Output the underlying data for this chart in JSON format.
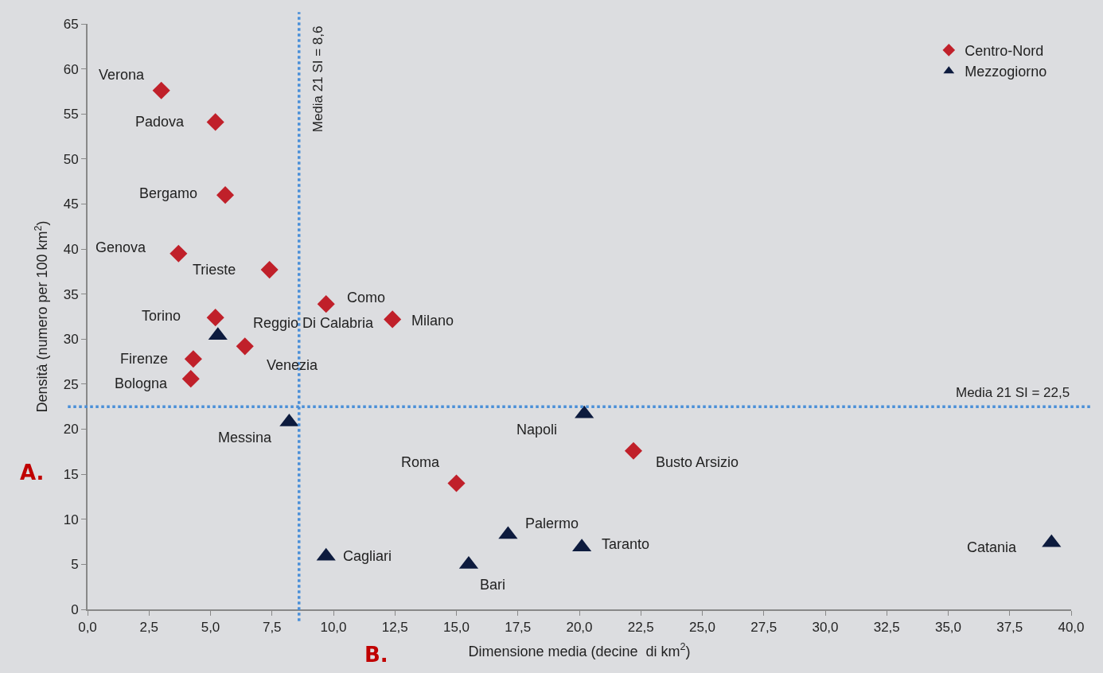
{
  "chart_data": {
    "type": "scatter",
    "xlabel": "Dimensione media (decine  di km$^{2}$)",
    "ylabel": "Densità (numero per 100 km$^{2}$)",
    "series": [
      {
        "name": "Centro-Nord",
        "color": "#c0202a",
        "marker": "diamond",
        "x": [
          3.0,
          5.2,
          5.6,
          3.7,
          7.4,
          9.7,
          12.4,
          5.2,
          6.4,
          4.3,
          4.2,
          22.2,
          15.0
        ],
        "values": [
          57.6,
          54.1,
          46.0,
          39.5,
          37.7,
          33.9,
          32.2,
          32.4,
          29.2,
          27.8,
          25.6,
          17.6,
          14.0
        ]
      },
      {
        "name": "Mezzogiorno",
        "color": "#0d1b3e",
        "marker": "triangle",
        "x": [
          5.3,
          8.2,
          20.2,
          17.1,
          20.1,
          9.7,
          15.5,
          39.2
        ],
        "values": [
          30.4,
          20.8,
          21.7,
          8.3,
          6.9,
          5.9,
          5.0,
          7.4
        ]
      }
    ],
    "xlim": [
      0,
      40
    ],
    "xticks": [
      {
        "value": 0,
        "label": "0,0"
      },
      {
        "value": 2.5,
        "label": "2,5"
      },
      {
        "value": 5,
        "label": "5,0"
      },
      {
        "value": 7.5,
        "label": "7,5"
      },
      {
        "value": 10,
        "label": "10,0"
      },
      {
        "value": 12.5,
        "label": "12,5"
      },
      {
        "value": 15,
        "label": "15,0"
      },
      {
        "value": 17.5,
        "label": "17,5"
      },
      {
        "value": 20,
        "label": "20,0"
      },
      {
        "value": 22.5,
        "label": "22,5"
      },
      {
        "value": 25,
        "label": "25,0"
      },
      {
        "value": 27.5,
        "label": "27,5"
      },
      {
        "value": 30,
        "label": "30,0"
      },
      {
        "value": 32.5,
        "label": "32,5"
      },
      {
        "value": 35,
        "label": "35,0"
      },
      {
        "value": 37.5,
        "label": "37,5"
      },
      {
        "value": 40,
        "label": "40,0"
      }
    ],
    "ylim": [
      0,
      65
    ],
    "yticks": [
      0,
      5,
      10,
      15,
      20,
      25,
      30,
      35,
      40,
      45,
      50,
      55,
      60,
      65
    ],
    "ref_lines": [
      {
        "axis": "x",
        "value": 8.6,
        "label": "Media 21 SI = 8,6",
        "color": "#4a8fd8",
        "line_style": "dotted"
      },
      {
        "axis": "y",
        "value": 22.5,
        "label": "Media 21 SI = 22,5",
        "color": "#4a8fd8",
        "line_style": "dotted"
      }
    ],
    "annotations": [
      {
        "text": "Verona",
        "x": 3.0,
        "y": 57.6
      },
      {
        "text": "Padova",
        "x": 5.2,
        "y": 54.1
      },
      {
        "text": "Bergamo",
        "x": 5.6,
        "y": 46.0
      },
      {
        "text": "Genova",
        "x": 3.7,
        "y": 39.5
      },
      {
        "text": "Trieste",
        "x": 7.4,
        "y": 37.7
      },
      {
        "text": "Como",
        "x": 9.7,
        "y": 33.9
      },
      {
        "text": "Milano",
        "x": 12.4,
        "y": 32.2
      },
      {
        "text": "Torino",
        "x": 5.2,
        "y": 32.4
      },
      {
        "text": "Venezia",
        "x": 6.4,
        "y": 29.2
      },
      {
        "text": "Firenze",
        "x": 4.3,
        "y": 27.8
      },
      {
        "text": "Bologna",
        "x": 4.2,
        "y": 25.6
      },
      {
        "text": "Busto Arsizio",
        "x": 22.2,
        "y": 17.6
      },
      {
        "text": "Roma",
        "x": 15.0,
        "y": 14.0
      },
      {
        "text": "Reggio Di Calabria",
        "x": 5.3,
        "y": 30.4
      },
      {
        "text": "Messina",
        "x": 8.2,
        "y": 20.8
      },
      {
        "text": "Napoli",
        "x": 20.2,
        "y": 21.7
      },
      {
        "text": "Palermo",
        "x": 17.1,
        "y": 8.3
      },
      {
        "text": "Taranto",
        "x": 20.1,
        "y": 6.9
      },
      {
        "text": "Cagliari",
        "x": 9.7,
        "y": 5.9
      },
      {
        "text": "Bari",
        "x": 15.5,
        "y": 5.0
      },
      {
        "text": "Catania",
        "x": 39.2,
        "y": 7.4
      },
      "A.",
      "B."
    ],
    "grid": false,
    "legend": "top right"
  }
}
